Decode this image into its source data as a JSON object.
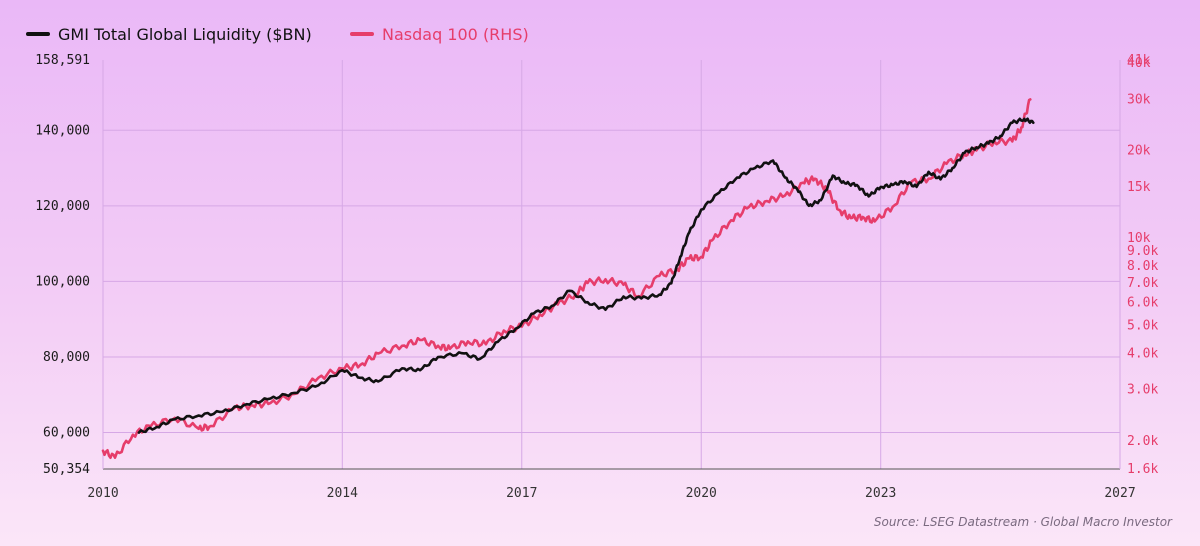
{
  "legend": [
    {
      "label": "GMI Total Global Liquidity ($BN)",
      "color": "#111111"
    },
    {
      "label": "Nasdaq 100 (RHS)",
      "color": "#e63d6b"
    }
  ],
  "source": "Source: LSEG Datastream · Global Macro Investor",
  "chart_data": {
    "type": "line",
    "title": "",
    "xlabel": "",
    "ylabel": "",
    "x_ticks": [
      "2010",
      "2014",
      "2017",
      "2020",
      "2023",
      "2027"
    ],
    "x_tick_values": [
      2010,
      2014,
      2017,
      2020,
      2023,
      2027
    ],
    "xlim": [
      2010,
      2027
    ],
    "y_left": {
      "ticks": [
        "50,354",
        "60,000",
        "80,000",
        "100,000",
        "120,000",
        "140,000",
        "158,591"
      ],
      "tick_values": [
        50354,
        60000,
        80000,
        100000,
        120000,
        140000,
        158591
      ],
      "ylim": [
        50354,
        158591
      ],
      "scale": "linear"
    },
    "y_right": {
      "ticks": [
        "1.6k",
        "2.0k",
        "3.0k",
        "4.0k",
        "5.0k",
        "6.0k",
        "7.0k",
        "8.0k",
        "9.0k",
        "10k",
        "15k",
        "20k",
        "30k",
        "40k",
        "41k"
      ],
      "tick_values": [
        1600,
        2000,
        3000,
        4000,
        5000,
        6000,
        7000,
        8000,
        9000,
        10000,
        15000,
        20000,
        30000,
        40000,
        41000
      ],
      "ylim": [
        1600,
        41000
      ],
      "scale": "log"
    },
    "grid": true,
    "legend_position": "top-left",
    "series": [
      {
        "name": "GMI Total Global Liquidity ($BN)",
        "axis": "left",
        "color": "#111111",
        "x": [
          2010.6,
          2010.9,
          2011.2,
          2011.6,
          2012.0,
          2012.4,
          2012.8,
          2013.2,
          2013.6,
          2014.0,
          2014.3,
          2014.6,
          2015.0,
          2015.3,
          2015.6,
          2016.0,
          2016.3,
          2016.6,
          2016.9,
          2017.2,
          2017.5,
          2017.8,
          2018.1,
          2018.4,
          2018.7,
          2019.0,
          2019.3,
          2019.5,
          2019.65,
          2019.8,
          2020.0,
          2020.3,
          2020.6,
          2020.9,
          2021.2,
          2021.4,
          2021.6,
          2021.8,
          2022.0,
          2022.2,
          2022.4,
          2022.6,
          2022.8,
          2023.0,
          2023.2,
          2023.4,
          2023.6,
          2023.8,
          2024.0,
          2024.2,
          2024.4,
          2024.6,
          2024.8,
          2025.0,
          2025.2,
          2025.4,
          2025.55
        ],
        "y": [
          60000,
          61500,
          63500,
          64500,
          65500,
          67500,
          69000,
          70500,
          72500,
          76500,
          74500,
          73500,
          77000,
          76500,
          80000,
          81000,
          79500,
          84000,
          87500,
          91500,
          93500,
          97500,
          94500,
          92500,
          96000,
          95500,
          96500,
          99500,
          106500,
          113000,
          119000,
          123500,
          127500,
          130000,
          132000,
          127500,
          124500,
          120000,
          121500,
          128000,
          126000,
          125500,
          122500,
          125000,
          125500,
          126500,
          125000,
          129000,
          127000,
          130000,
          134000,
          135500,
          136500,
          138500,
          142000,
          143000,
          142000
        ]
      },
      {
        "name": "Nasdaq 100 (RHS)",
        "axis": "right",
        "color": "#e63d6b",
        "x": [
          2010.0,
          2010.2,
          2010.5,
          2010.8,
          2011.2,
          2011.6,
          2011.8,
          2012.2,
          2012.5,
          2012.8,
          2013.2,
          2013.6,
          2014.0,
          2014.3,
          2014.6,
          2015.0,
          2015.3,
          2015.6,
          2015.8,
          2016.1,
          2016.4,
          2016.7,
          2017.0,
          2017.3,
          2017.6,
          2017.9,
          2018.1,
          2018.4,
          2018.7,
          2018.95,
          2019.3,
          2019.6,
          2019.8,
          2020.0,
          2020.2,
          2020.5,
          2020.8,
          2021.1,
          2021.4,
          2021.7,
          2021.9,
          2022.1,
          2022.3,
          2022.5,
          2022.7,
          2022.9,
          2023.2,
          2023.5,
          2023.8,
          2024.1,
          2024.4,
          2024.6,
          2024.9,
          2025.2,
          2025.35,
          2025.5
        ],
        "y": [
          1850,
          1750,
          2100,
          2250,
          2400,
          2200,
          2250,
          2600,
          2650,
          2700,
          2900,
          3300,
          3550,
          3650,
          4000,
          4250,
          4450,
          4250,
          4150,
          4400,
          4300,
          4800,
          4950,
          5450,
          5900,
          6400,
          7000,
          7200,
          6900,
          6300,
          7400,
          7800,
          8500,
          8600,
          9900,
          11500,
          12800,
          13400,
          14000,
          15500,
          16000,
          14700,
          12500,
          11700,
          11800,
          11400,
          12800,
          15500,
          16000,
          18000,
          19500,
          20000,
          21500,
          21500,
          24000,
          30000
        ]
      }
    ]
  }
}
